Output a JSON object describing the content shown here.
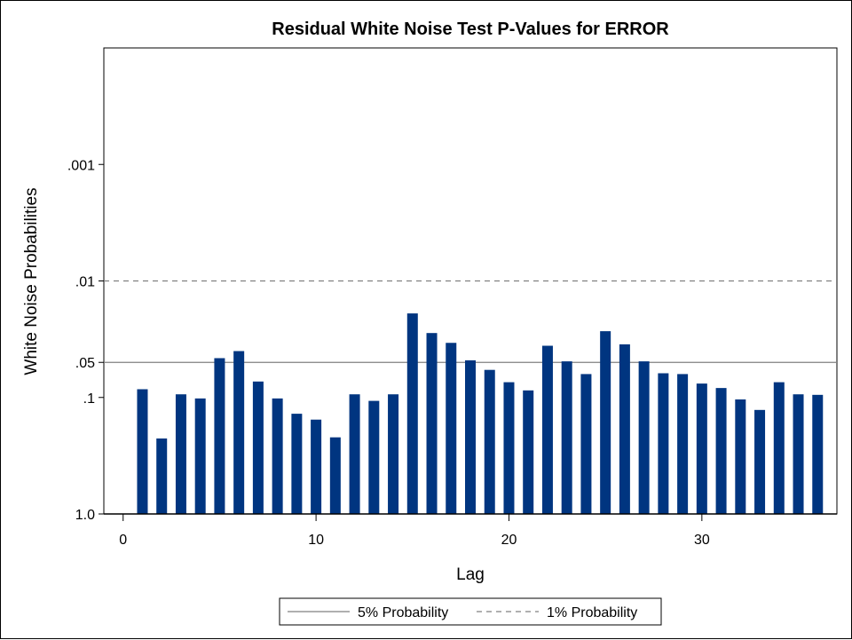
{
  "chart_data": {
    "type": "bar",
    "title": "Residual White Noise Test P-Values for ERROR",
    "xlabel": "Lag",
    "ylabel": "White Noise Probabilities",
    "y_scale": "log, reversed (1.0 at bottom, .0001 at top)",
    "xlim": [
      -1,
      37
    ],
    "ylim": [
      1.0,
      0.0001
    ],
    "x_ticks": [
      0,
      10,
      20,
      30
    ],
    "x_tick_labels": [
      "0",
      "10",
      "20",
      "30"
    ],
    "y_ticks": [
      0.001,
      0.01,
      0.05,
      0.1,
      1.0
    ],
    "y_tick_labels": [
      ".001",
      ".01",
      ".05",
      ".1",
      "1.0"
    ],
    "bar_color": "#003580",
    "lags": [
      1,
      2,
      3,
      4,
      5,
      6,
      7,
      8,
      9,
      10,
      11,
      12,
      13,
      14,
      15,
      16,
      17,
      18,
      19,
      20,
      21,
      22,
      23,
      24,
      25,
      26,
      27,
      28,
      29,
      30,
      31,
      32,
      33,
      34,
      35,
      36
    ],
    "p_values": [
      0.085,
      0.225,
      0.094,
      0.102,
      0.046,
      0.04,
      0.073,
      0.102,
      0.138,
      0.155,
      0.22,
      0.094,
      0.107,
      0.094,
      0.019,
      0.028,
      0.034,
      0.048,
      0.058,
      0.074,
      0.087,
      0.036,
      0.049,
      0.063,
      0.027,
      0.035,
      0.049,
      0.062,
      0.063,
      0.076,
      0.083,
      0.104,
      0.128,
      0.074,
      0.094,
      0.095
    ],
    "reference_lines": [
      {
        "name": "5% Probability",
        "value": 0.05,
        "style": "solid",
        "color": "#808080"
      },
      {
        "name": "1% Probability",
        "value": 0.01,
        "style": "dashed",
        "color": "#808080"
      }
    ],
    "legend_position": "bottom-center",
    "grid": false
  }
}
